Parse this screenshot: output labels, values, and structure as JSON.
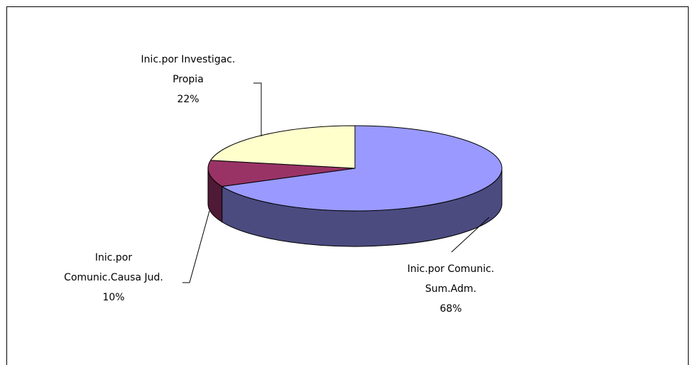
{
  "chart_data": {
    "type": "pie3d",
    "categories": [
      "Inic.por Comunic.\nSum.Adm.",
      "Inic.por\nComunic.Causa Jud.",
      "Inic.por Investigac.\nPropia"
    ],
    "values": [
      68,
      10,
      22
    ],
    "value_labels": [
      "68%",
      "10%",
      "22%"
    ],
    "colors": [
      "#9999ff",
      "#993366",
      "#ffffcc"
    ],
    "side_colors": [
      "#4b4b80",
      "#4f1a35",
      "#8a8a6a"
    ]
  }
}
